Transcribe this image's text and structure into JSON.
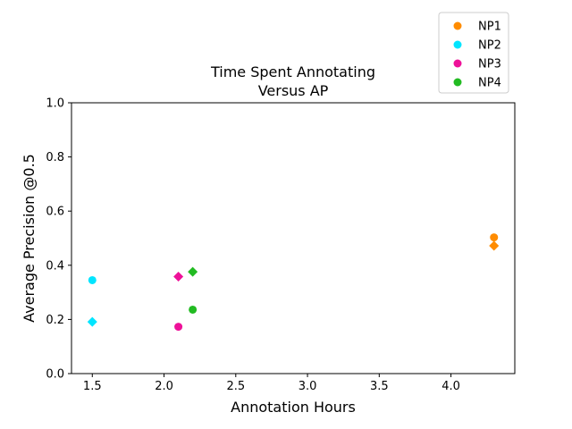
{
  "chart_data": {
    "type": "scatter",
    "title_lines": [
      "Time Spent Annotating",
      "Versus AP"
    ],
    "xlabel": "Annotation Hours",
    "ylabel": "Average Precision @0.5",
    "xlim": [
      1.355,
      4.445
    ],
    "ylim": [
      0.0,
      1.0
    ],
    "xticks": [
      1.5,
      2.0,
      2.5,
      3.0,
      3.5,
      4.0
    ],
    "xtick_labels": [
      "1.5",
      "2.0",
      "2.5",
      "3.0",
      "3.5",
      "4.0"
    ],
    "yticks": [
      0.0,
      0.2,
      0.4,
      0.6,
      0.8,
      1.0
    ],
    "ytick_labels": [
      "0.0",
      "0.2",
      "0.4",
      "0.6",
      "0.8",
      "1.0"
    ],
    "grid": false,
    "legend_position": "upper-right-outside",
    "series": [
      {
        "name": "NP1",
        "color": "#ff8c00",
        "points": [
          {
            "x": 4.3,
            "y": 0.503,
            "marker": "circle"
          },
          {
            "x": 4.3,
            "y": 0.472,
            "marker": "diamond"
          }
        ]
      },
      {
        "name": "NP2",
        "color": "#00e5ff",
        "points": [
          {
            "x": 1.5,
            "y": 0.345,
            "marker": "circle"
          },
          {
            "x": 1.5,
            "y": 0.191,
            "marker": "diamond"
          }
        ]
      },
      {
        "name": "NP3",
        "color": "#ee1199",
        "points": [
          {
            "x": 2.1,
            "y": 0.173,
            "marker": "circle"
          },
          {
            "x": 2.1,
            "y": 0.358,
            "marker": "diamond"
          }
        ]
      },
      {
        "name": "NP4",
        "color": "#22bb22",
        "points": [
          {
            "x": 2.2,
            "y": 0.236,
            "marker": "circle"
          },
          {
            "x": 2.2,
            "y": 0.376,
            "marker": "diamond"
          }
        ]
      }
    ]
  }
}
